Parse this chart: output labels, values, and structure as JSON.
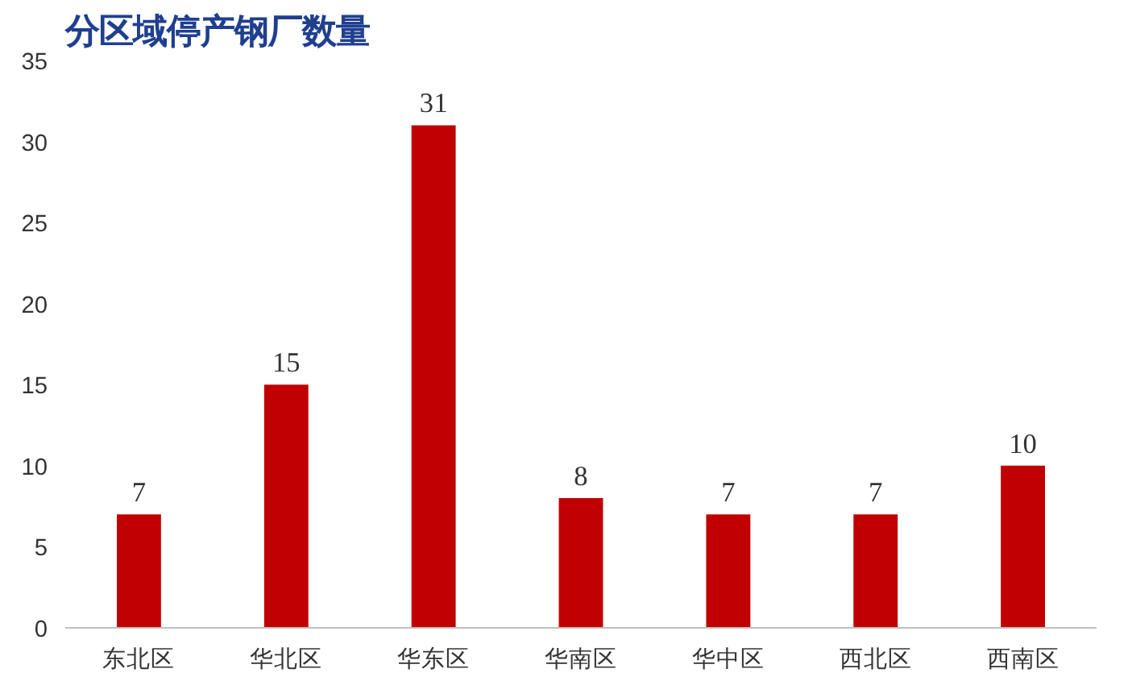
{
  "chart_data": {
    "type": "bar",
    "title": "分区域停产钢厂数量",
    "categories": [
      "东北区",
      "华北区",
      "华东区",
      "华南区",
      "华中区",
      "西北区",
      "西南区"
    ],
    "values": [
      7,
      15,
      31,
      8,
      7,
      7,
      10
    ],
    "color": "#c00000",
    "ylim": [
      0,
      35
    ],
    "yticks": [
      0,
      5,
      10,
      15,
      20,
      25,
      30,
      35
    ],
    "data_labels": true,
    "grid": false
  }
}
